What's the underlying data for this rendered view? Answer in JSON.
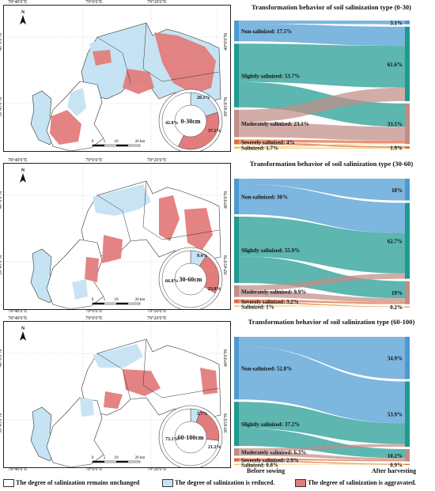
{
  "colors": {
    "unchanged": "#ffffff",
    "reduced": "#c5e3f3",
    "aggravated": "#e37c7c",
    "non_salinized": "#4b9ad3",
    "slightly": "#1f9a90",
    "moderately": "#c08e86",
    "severely": "#e06a3a",
    "salinized": "#e8c35a"
  },
  "coordinates": {
    "top": [
      "78°40'0\"E",
      "79°0'0\"E",
      "79°20'0\"E"
    ],
    "left": [
      "40°0'0\"N",
      "39°45'0\"N"
    ],
    "right": [
      "40°0'0\"N",
      "39°45'0\"N"
    ]
  },
  "north_label": "N",
  "scale": {
    "ticks": [
      "0",
      "5",
      "10",
      "20 km"
    ]
  },
  "panels": [
    {
      "depth": "0-30cm",
      "title": "Transformation behavior of soil salinization type (0-30)",
      "donut": {
        "reduced": "20.1%",
        "aggravated": "37.1%",
        "unchanged": "42.8%"
      },
      "before": [
        {
          "label": "Non-salinized: 17.5%",
          "value": 17.5
        },
        {
          "label": "Slightly salinized: 53.7%",
          "value": 53.7
        },
        {
          "label": "Moderately salinized: 23.1%",
          "value": 23.1
        },
        {
          "label": "Severely salinized: 4%",
          "value": 4
        },
        {
          "label": "Salinized: 1.7%",
          "value": 1.7
        }
      ],
      "after": [
        {
          "label": "3.1%",
          "value": 3.1
        },
        {
          "label": "61.6%",
          "value": 61.6
        },
        {
          "label": "33.5%",
          "value": 33.5
        },
        {
          "label": "1.9%",
          "value": 1.9
        }
      ]
    },
    {
      "depth": "30-60cm",
      "title": "Transformation behavior of soil salinization type (30-60)",
      "donut": {
        "reduced": "9.4%",
        "aggravated": "23.8%",
        "unchanged": "66.8%"
      },
      "before": [
        {
          "label": "Non-salinized: 30%",
          "value": 30
        },
        {
          "label": "Slightly salinized: 55.9%",
          "value": 55.9
        },
        {
          "label": "Moderately salinized: 9.9%",
          "value": 9.9
        },
        {
          "label": "Severely salinized: 3.2%",
          "value": 3.2
        },
        {
          "label": "Salinized: 1%",
          "value": 1
        }
      ],
      "after": [
        {
          "label": "18%",
          "value": 18
        },
        {
          "label": "62.7%",
          "value": 62.7
        },
        {
          "label": "19%",
          "value": 19
        },
        {
          "label": "0.2%",
          "value": 0.2
        }
      ]
    },
    {
      "depth": "60-100cm",
      "title": "Transformation behavior of soil salinization type (60-100)",
      "donut": {
        "reduced": "5.7%",
        "aggravated": "21.2%",
        "unchanged": "73.1%"
      },
      "before": [
        {
          "label": "Non-salinized: 52.8%",
          "value": 52.8
        },
        {
          "label": "Slightly salinized: 37.2%",
          "value": 37.2
        },
        {
          "label": "Moderately salinized: 6.3%",
          "value": 6.3
        },
        {
          "label": "Severely salinized: 2.9%",
          "value": 2.9
        },
        {
          "label": "Salinized: 0.8%",
          "value": 0.8
        }
      ],
      "after": [
        {
          "label": "34.9%",
          "value": 34.9
        },
        {
          "label": "53.9%",
          "value": 53.9
        },
        {
          "label": "10.2%",
          "value": 10.2
        },
        {
          "label": "0.9%",
          "value": 0.9
        }
      ]
    }
  ],
  "axis": {
    "before": "Before sowing",
    "after": "After harvesting"
  },
  "legend": {
    "unchanged": "The degree of salinization remains unchanged",
    "reduced": "The degree of salinization is reduced.",
    "aggravated": "The degree of salinization is aggravated."
  }
}
